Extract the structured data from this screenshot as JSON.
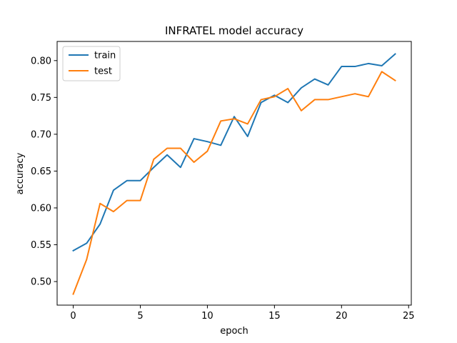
{
  "chart_data": {
    "type": "line",
    "title": "INFRATEL model accuracy",
    "xlabel": "epoch",
    "ylabel": "accuracy",
    "xlim": [
      -1.2,
      25.2
    ],
    "ylim": [
      0.468,
      0.826
    ],
    "xticks": [
      0,
      5,
      10,
      15,
      20,
      25
    ],
    "yticks": [
      0.5,
      0.55,
      0.6,
      0.65,
      0.7,
      0.75,
      0.8
    ],
    "x": [
      0,
      1,
      2,
      3,
      4,
      5,
      6,
      7,
      8,
      9,
      10,
      11,
      12,
      13,
      14,
      15,
      16,
      17,
      18,
      19,
      20,
      21,
      22,
      23,
      24
    ],
    "series": [
      {
        "name": "train",
        "color": "#1f77b4",
        "values": [
          0.542,
          0.552,
          0.578,
          0.624,
          0.637,
          0.637,
          0.655,
          0.672,
          0.655,
          0.694,
          0.69,
          0.685,
          0.724,
          0.697,
          0.743,
          0.753,
          0.743,
          0.763,
          0.775,
          0.767,
          0.792,
          0.792,
          0.796,
          0.793,
          0.809
        ]
      },
      {
        "name": "test",
        "color": "#ff7f0e",
        "values": [
          0.483,
          0.53,
          0.606,
          0.595,
          0.61,
          0.61,
          0.666,
          0.681,
          0.681,
          0.662,
          0.677,
          0.718,
          0.721,
          0.714,
          0.747,
          0.751,
          0.762,
          0.732,
          0.747,
          0.747,
          0.751,
          0.755,
          0.751,
          0.785,
          0.773
        ]
      }
    ],
    "grid": false,
    "legend": "top-left"
  }
}
